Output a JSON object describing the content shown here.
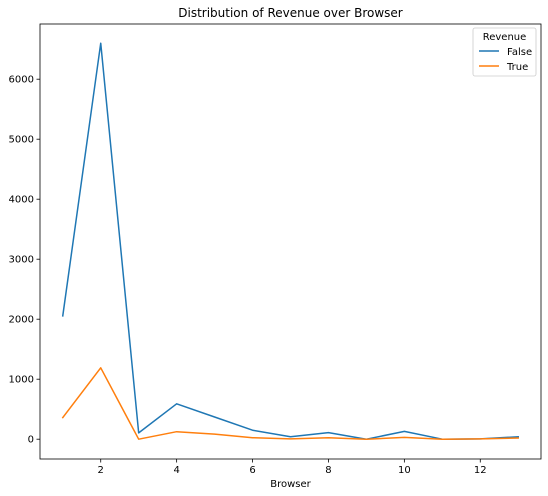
{
  "chart_data": {
    "type": "line",
    "title": "Distribution of Revenue over Browser",
    "xlabel": "Browser",
    "ylabel": "",
    "xlim": [
      0.4,
      13.6
    ],
    "ylim": [
      -330,
      6920
    ],
    "xticks": [
      2,
      4,
      6,
      8,
      10,
      12
    ],
    "yticks": [
      0,
      1000,
      2000,
      3000,
      4000,
      5000,
      6000
    ],
    "x": [
      1,
      2,
      3,
      4,
      5,
      6,
      7,
      8,
      9,
      10,
      11,
      12,
      13
    ],
    "series": [
      {
        "name": "False",
        "color": "#1f77b4",
        "values": [
          2055,
          6600,
          105,
          590,
          370,
          150,
          40,
          110,
          0,
          130,
          0,
          5,
          40
        ]
      },
      {
        "name": "True",
        "color": "#ff7f0e",
        "values": [
          360,
          1190,
          0,
          125,
          85,
          25,
          5,
          25,
          0,
          30,
          0,
          5,
          20
        ]
      }
    ],
    "legend": {
      "title": "Revenue",
      "placement": "top-right"
    },
    "grid": false
  }
}
